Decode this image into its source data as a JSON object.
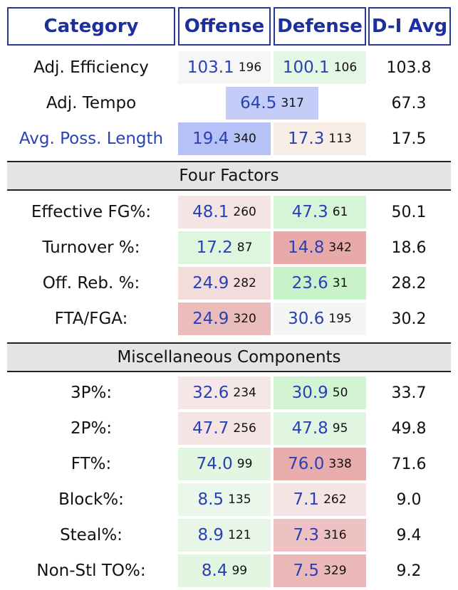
{
  "headers": {
    "category": "Category",
    "offense": "Offense",
    "defense": "Defense",
    "avg": "D-I Avg"
  },
  "top_rows": [
    {
      "label": "Adj. Efficiency",
      "off": {
        "value": "103.1",
        "rank": "196",
        "color": "#f6f6f6"
      },
      "def": {
        "value": "100.1",
        "rank": "106",
        "color": "#e4f6e4"
      },
      "avg": "103.8"
    },
    {
      "label": "Avg. Poss. Length",
      "off": {
        "value": "19.4",
        "rank": "340",
        "color": "#b6c2f7"
      },
      "def": {
        "value": "17.3",
        "rank": "113",
        "color": "#f8eee6"
      },
      "avg": "17.5"
    }
  ],
  "tempo": {
    "label": "Adj. Tempo",
    "value": "64.5",
    "rank": "317",
    "color": "#c4cdf7",
    "avg": "67.3"
  },
  "sections": {
    "four_factors": "Four Factors",
    "misc": "Miscellaneous Components"
  },
  "four_factors": [
    {
      "label": "Effective FG%:",
      "off": {
        "value": "48.1",
        "rank": "260",
        "color": "#f4e4e4"
      },
      "def": {
        "value": "47.3",
        "rank": "61",
        "color": "#d6f5d6"
      },
      "avg": "50.1"
    },
    {
      "label": "Turnover %:",
      "off": {
        "value": "17.2",
        "rank": "87",
        "color": "#def6de"
      },
      "def": {
        "value": "14.8",
        "rank": "342",
        "color": "#e8a9a9"
      },
      "avg": "18.6"
    },
    {
      "label": "Off. Reb. %:",
      "off": {
        "value": "24.9",
        "rank": "282",
        "color": "#f2dcdc"
      },
      "def": {
        "value": "23.6",
        "rank": "31",
        "color": "#c8f2c8"
      },
      "avg": "28.2"
    },
    {
      "label": "FTA/FGA:",
      "off": {
        "value": "24.9",
        "rank": "320",
        "color": "#ebbcbc"
      },
      "def": {
        "value": "30.6",
        "rank": "195",
        "color": "#f4f6f4"
      },
      "avg": "30.2"
    }
  ],
  "misc": [
    {
      "label": "3P%:",
      "off": {
        "value": "32.6",
        "rank": "234",
        "color": "#f5e7e7"
      },
      "def": {
        "value": "30.9",
        "rank": "50",
        "color": "#d2f4d2"
      },
      "avg": "33.7"
    },
    {
      "label": "2P%:",
      "off": {
        "value": "47.7",
        "rank": "256",
        "color": "#f4e4e4"
      },
      "def": {
        "value": "47.8",
        "rank": "95",
        "color": "#e0f6e0"
      },
      "avg": "49.8"
    },
    {
      "label": "FT%:",
      "off": {
        "value": "74.0",
        "rank": "99",
        "color": "#e2f6e2"
      },
      "def": {
        "value": "76.0",
        "rank": "338",
        "color": "#e8acac"
      },
      "avg": "71.6"
    },
    {
      "label": "Block%:",
      "off": {
        "value": "8.5",
        "rank": "135",
        "color": "#eaf7ea"
      },
      "def": {
        "value": "7.1",
        "rank": "262",
        "color": "#f4e4e4"
      },
      "avg": "9.0"
    },
    {
      "label": "Steal%:",
      "off": {
        "value": "8.9",
        "rank": "121",
        "color": "#e8f6e8"
      },
      "def": {
        "value": "7.3",
        "rank": "316",
        "color": "#eec2c2"
      },
      "avg": "9.4"
    },
    {
      "label": "Non-Stl TO%:",
      "off": {
        "value": "8.4",
        "rank": "99",
        "color": "#e2f6e2"
      },
      "def": {
        "value": "7.5",
        "rank": "329",
        "color": "#ebb8b8"
      },
      "avg": "9.2"
    }
  ]
}
